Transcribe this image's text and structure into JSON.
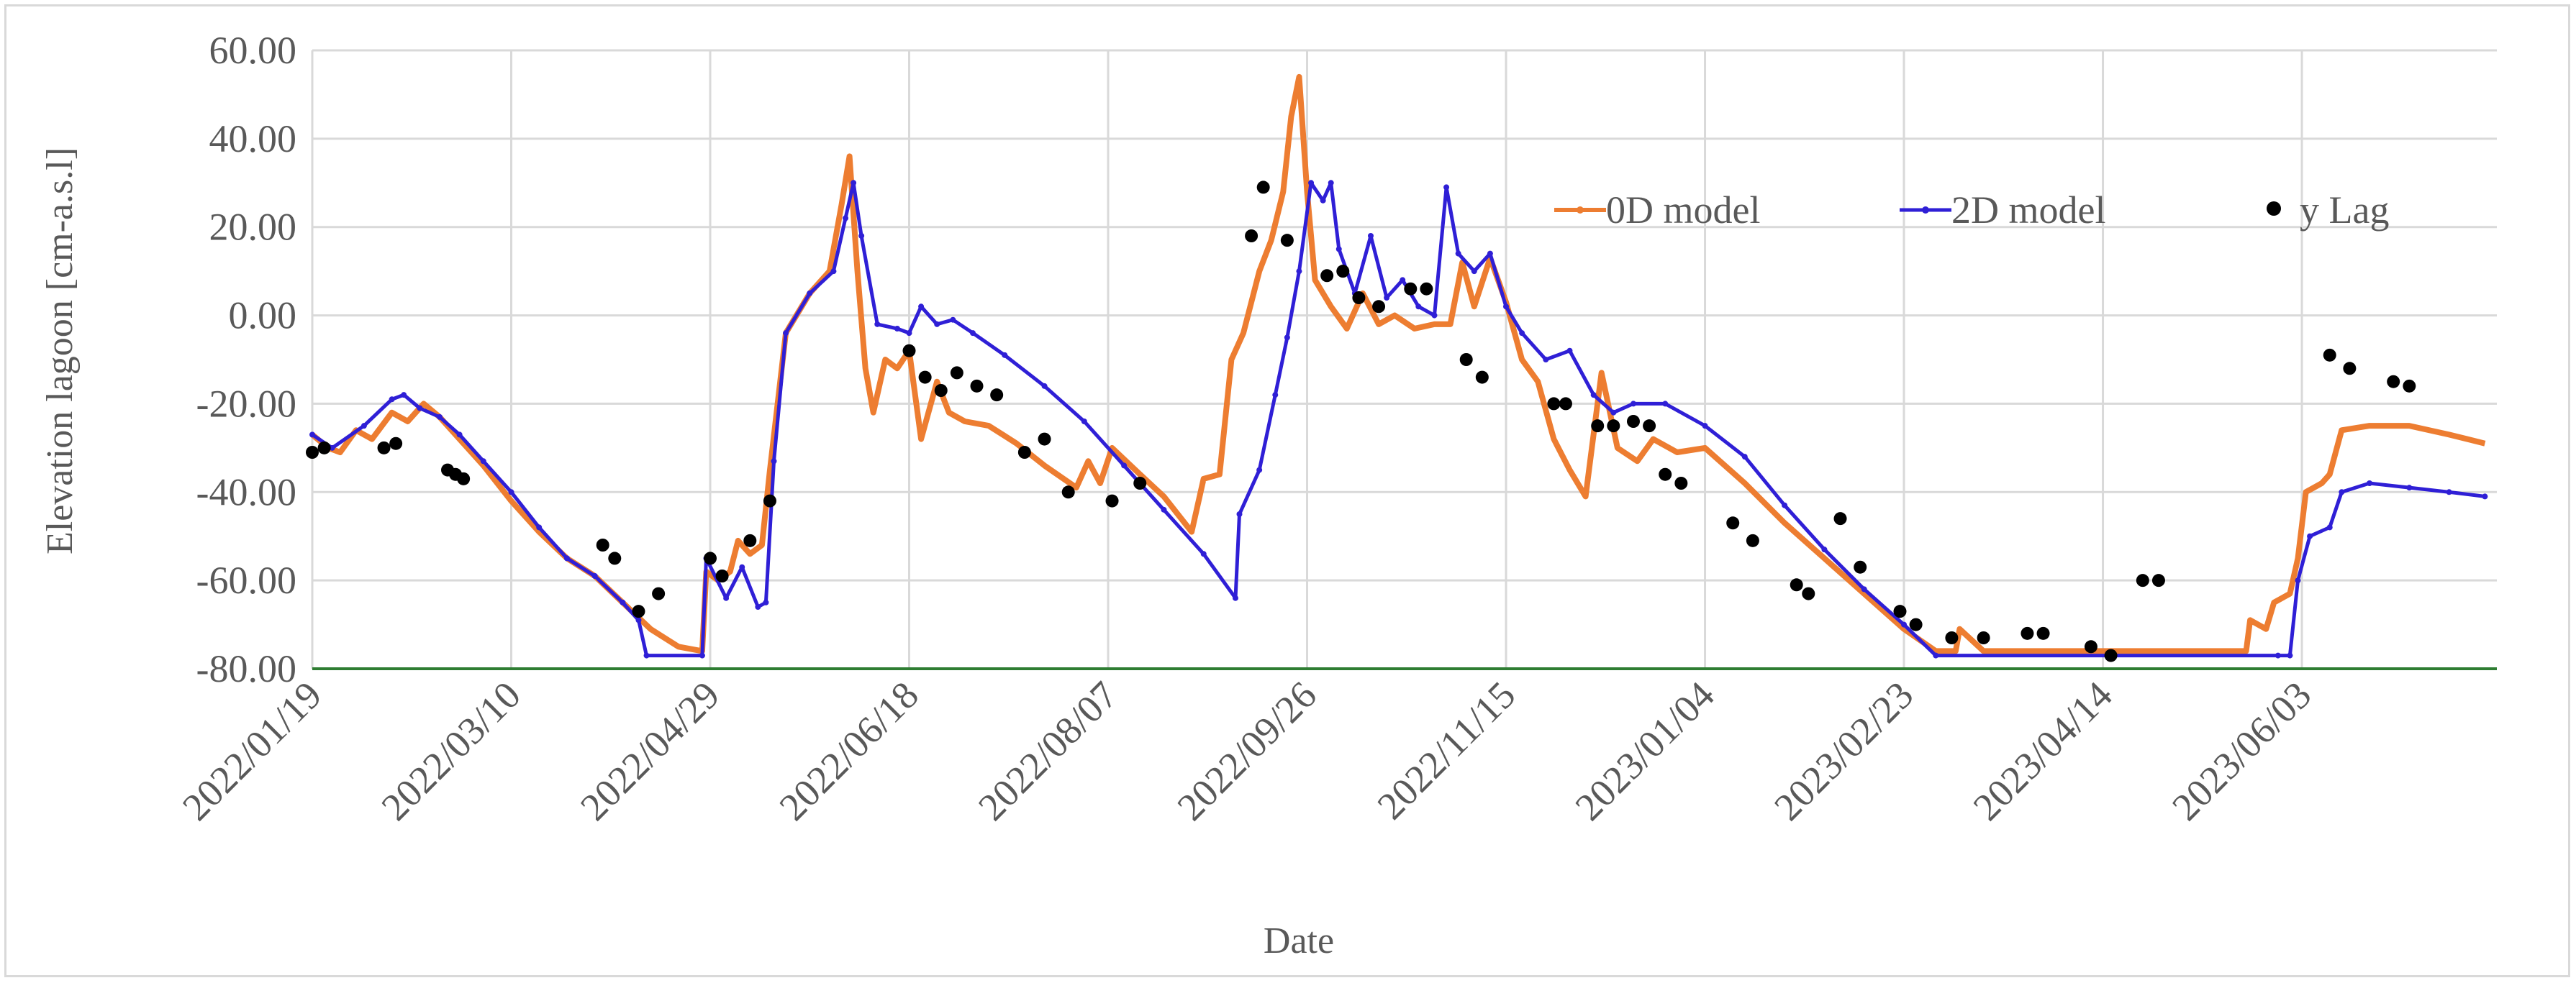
{
  "chart_data": {
    "type": "line",
    "title": "",
    "xlabel": "Date",
    "ylabel": "Elevation lagoon [cm-a.s.l]",
    "ylim": [
      -80,
      60
    ],
    "xlim": [
      "2022-01-19",
      "2023-07-22"
    ],
    "y_ticks": [
      "60.00",
      "40.00",
      "20.00",
      "0.00",
      "-20.00",
      "-40.00",
      "-60.00",
      "-80.00"
    ],
    "x_ticks": [
      "2022/01/19",
      "2022/03/10",
      "2022/04/29",
      "2022/06/18",
      "2022/08/07",
      "2022/09/26",
      "2022/11/15",
      "2023/01/04",
      "2023/02/23",
      "2023/04/14",
      "2023/06/03"
    ],
    "grid": true,
    "legend_position": "top-right",
    "colors": {
      "0D model": "#ed7d31",
      "2D model": "#2f1fd6",
      "y Lag": "#000000",
      "baseline": "#2e7d32",
      "grid": "#d9d9d9"
    },
    "series": [
      {
        "name": "0D model",
        "kind": "line",
        "points": [
          [
            "2022-01-19",
            -27
          ],
          [
            "2022-01-23",
            -30
          ],
          [
            "2022-01-26",
            -31
          ],
          [
            "2022-01-30",
            -26
          ],
          [
            "2022-02-03",
            -28
          ],
          [
            "2022-02-08",
            -22
          ],
          [
            "2022-02-12",
            -24
          ],
          [
            "2022-02-16",
            -20
          ],
          [
            "2022-02-20",
            -23
          ],
          [
            "2022-02-25",
            -28
          ],
          [
            "2022-03-03",
            -34
          ],
          [
            "2022-03-10",
            -42
          ],
          [
            "2022-03-17",
            -49
          ],
          [
            "2022-03-24",
            -55
          ],
          [
            "2022-03-31",
            -59
          ],
          [
            "2022-04-07",
            -65
          ],
          [
            "2022-04-14",
            -71
          ],
          [
            "2022-04-21",
            -75
          ],
          [
            "2022-04-27",
            -76
          ],
          [
            "2022-04-28",
            -58
          ],
          [
            "2022-05-01",
            -60
          ],
          [
            "2022-05-04",
            -58
          ],
          [
            "2022-05-06",
            -51
          ],
          [
            "2022-05-09",
            -54
          ],
          [
            "2022-05-12",
            -52
          ],
          [
            "2022-05-14",
            -35
          ],
          [
            "2022-05-18",
            -4
          ],
          [
            "2022-05-24",
            5
          ],
          [
            "2022-05-29",
            10
          ],
          [
            "2022-06-01",
            25
          ],
          [
            "2022-06-03",
            36
          ],
          [
            "2022-06-05",
            10
          ],
          [
            "2022-06-07",
            -12
          ],
          [
            "2022-06-09",
            -22
          ],
          [
            "2022-06-12",
            -10
          ],
          [
            "2022-06-15",
            -12
          ],
          [
            "2022-06-18",
            -8
          ],
          [
            "2022-06-21",
            -28
          ],
          [
            "2022-06-25",
            -15
          ],
          [
            "2022-06-28",
            -22
          ],
          [
            "2022-07-02",
            -24
          ],
          [
            "2022-07-08",
            -25
          ],
          [
            "2022-07-15",
            -29
          ],
          [
            "2022-07-22",
            -34
          ],
          [
            "2022-07-30",
            -39
          ],
          [
            "2022-08-02",
            -33
          ],
          [
            "2022-08-05",
            -38
          ],
          [
            "2022-08-08",
            -30
          ],
          [
            "2022-08-15",
            -36
          ],
          [
            "2022-08-21",
            -41
          ],
          [
            "2022-08-28",
            -49
          ],
          [
            "2022-08-31",
            -37
          ],
          [
            "2022-09-04",
            -36
          ],
          [
            "2022-09-07",
            -10
          ],
          [
            "2022-09-10",
            -4
          ],
          [
            "2022-09-14",
            10
          ],
          [
            "2022-09-17",
            17
          ],
          [
            "2022-09-20",
            28
          ],
          [
            "2022-09-22",
            45
          ],
          [
            "2022-09-24",
            54
          ],
          [
            "2022-09-26",
            28
          ],
          [
            "2022-09-28",
            8
          ],
          [
            "2022-10-02",
            2
          ],
          [
            "2022-10-06",
            -3
          ],
          [
            "2022-10-10",
            5
          ],
          [
            "2022-10-14",
            -2
          ],
          [
            "2022-10-18",
            0
          ],
          [
            "2022-10-23",
            -3
          ],
          [
            "2022-10-28",
            -2
          ],
          [
            "2022-11-01",
            -2
          ],
          [
            "2022-11-04",
            12
          ],
          [
            "2022-11-07",
            2
          ],
          [
            "2022-11-11",
            13
          ],
          [
            "2022-11-15",
            3
          ],
          [
            "2022-11-19",
            -10
          ],
          [
            "2022-11-23",
            -15
          ],
          [
            "2022-11-27",
            -28
          ],
          [
            "2022-12-01",
            -35
          ],
          [
            "2022-12-05",
            -41
          ],
          [
            "2022-12-09",
            -13
          ],
          [
            "2022-12-13",
            -30
          ],
          [
            "2022-12-18",
            -33
          ],
          [
            "2022-12-22",
            -28
          ],
          [
            "2022-12-28",
            -31
          ],
          [
            "2023-01-04",
            -30
          ],
          [
            "2023-01-14",
            -38
          ],
          [
            "2023-01-24",
            -47
          ],
          [
            "2023-02-03",
            -55
          ],
          [
            "2023-02-13",
            -63
          ],
          [
            "2023-02-23",
            -71
          ],
          [
            "2023-03-03",
            -76
          ],
          [
            "2023-03-08",
            -76
          ],
          [
            "2023-03-09",
            -71
          ],
          [
            "2023-03-15",
            -76
          ],
          [
            "2023-05-20",
            -76
          ],
          [
            "2023-05-21",
            -69
          ],
          [
            "2023-05-25",
            -71
          ],
          [
            "2023-05-27",
            -65
          ],
          [
            "2023-05-31",
            -63
          ],
          [
            "2023-06-02",
            -55
          ],
          [
            "2023-06-04",
            -40
          ],
          [
            "2023-06-08",
            -38
          ],
          [
            "2023-06-10",
            -36
          ],
          [
            "2023-06-13",
            -26
          ],
          [
            "2023-06-20",
            -25
          ],
          [
            "2023-06-30",
            -25
          ],
          [
            "2023-07-10",
            -27
          ],
          [
            "2023-07-19",
            -29
          ]
        ]
      },
      {
        "name": "2D model",
        "kind": "line",
        "points": [
          [
            "2022-01-19",
            -27
          ],
          [
            "2022-01-24",
            -30
          ],
          [
            "2022-02-01",
            -25
          ],
          [
            "2022-02-08",
            -19
          ],
          [
            "2022-02-11",
            -18
          ],
          [
            "2022-02-15",
            -21
          ],
          [
            "2022-02-20",
            -23
          ],
          [
            "2022-02-25",
            -27
          ],
          [
            "2022-03-03",
            -33
          ],
          [
            "2022-03-10",
            -40
          ],
          [
            "2022-03-17",
            -48
          ],
          [
            "2022-03-24",
            -55
          ],
          [
            "2022-03-31",
            -59
          ],
          [
            "2022-04-07",
            -65
          ],
          [
            "2022-04-11",
            -69
          ],
          [
            "2022-04-13",
            -77
          ],
          [
            "2022-04-27",
            -77
          ],
          [
            "2022-04-28",
            -55
          ],
          [
            "2022-05-03",
            -64
          ],
          [
            "2022-05-07",
            -57
          ],
          [
            "2022-05-11",
            -66
          ],
          [
            "2022-05-13",
            -65
          ],
          [
            "2022-05-15",
            -33
          ],
          [
            "2022-05-18",
            -4
          ],
          [
            "2022-05-24",
            5
          ],
          [
            "2022-05-30",
            10
          ],
          [
            "2022-06-02",
            22
          ],
          [
            "2022-06-04",
            30
          ],
          [
            "2022-06-06",
            18
          ],
          [
            "2022-06-10",
            -2
          ],
          [
            "2022-06-15",
            -3
          ],
          [
            "2022-06-18",
            -4
          ],
          [
            "2022-06-21",
            2
          ],
          [
            "2022-06-25",
            -2
          ],
          [
            "2022-06-29",
            -1
          ],
          [
            "2022-07-04",
            -4
          ],
          [
            "2022-07-12",
            -9
          ],
          [
            "2022-07-22",
            -16
          ],
          [
            "2022-08-01",
            -24
          ],
          [
            "2022-08-11",
            -34
          ],
          [
            "2022-08-21",
            -44
          ],
          [
            "2022-08-31",
            -54
          ],
          [
            "2022-09-08",
            -64
          ],
          [
            "2022-09-09",
            -45
          ],
          [
            "2022-09-14",
            -35
          ],
          [
            "2022-09-18",
            -18
          ],
          [
            "2022-09-21",
            -5
          ],
          [
            "2022-09-24",
            10
          ],
          [
            "2022-09-27",
            30
          ],
          [
            "2022-09-30",
            26
          ],
          [
            "2022-10-02",
            30
          ],
          [
            "2022-10-04",
            15
          ],
          [
            "2022-10-08",
            5
          ],
          [
            "2022-10-12",
            18
          ],
          [
            "2022-10-16",
            4
          ],
          [
            "2022-10-20",
            8
          ],
          [
            "2022-10-24",
            2
          ],
          [
            "2022-10-28",
            0
          ],
          [
            "2022-10-31",
            29
          ],
          [
            "2022-11-03",
            14
          ],
          [
            "2022-11-07",
            10
          ],
          [
            "2022-11-11",
            14
          ],
          [
            "2022-11-15",
            2
          ],
          [
            "2022-11-19",
            -4
          ],
          [
            "2022-11-25",
            -10
          ],
          [
            "2022-12-01",
            -8
          ],
          [
            "2022-12-07",
            -18
          ],
          [
            "2022-12-12",
            -22
          ],
          [
            "2022-12-17",
            -20
          ],
          [
            "2022-12-25",
            -20
          ],
          [
            "2023-01-04",
            -25
          ],
          [
            "2023-01-14",
            -32
          ],
          [
            "2023-01-24",
            -43
          ],
          [
            "2023-02-03",
            -53
          ],
          [
            "2023-02-13",
            -62
          ],
          [
            "2023-02-23",
            -70
          ],
          [
            "2023-03-03",
            -77
          ],
          [
            "2023-05-28",
            -77
          ],
          [
            "2023-05-31",
            -77
          ],
          [
            "2023-06-02",
            -60
          ],
          [
            "2023-06-05",
            -50
          ],
          [
            "2023-06-10",
            -48
          ],
          [
            "2023-06-13",
            -40
          ],
          [
            "2023-06-20",
            -38
          ],
          [
            "2023-06-30",
            -39
          ],
          [
            "2023-07-10",
            -40
          ],
          [
            "2023-07-19",
            -41
          ]
        ]
      },
      {
        "name": "y Lag",
        "kind": "scatter",
        "points": [
          [
            "2022-01-19",
            -31
          ],
          [
            "2022-01-22",
            -30
          ],
          [
            "2022-02-06",
            -30
          ],
          [
            "2022-02-09",
            -29
          ],
          [
            "2022-02-22",
            -35
          ],
          [
            "2022-02-24",
            -36
          ],
          [
            "2022-02-26",
            -37
          ],
          [
            "2022-04-02",
            -52
          ],
          [
            "2022-04-05",
            -55
          ],
          [
            "2022-04-11",
            -67
          ],
          [
            "2022-04-16",
            -63
          ],
          [
            "2022-04-29",
            -55
          ],
          [
            "2022-05-02",
            -59
          ],
          [
            "2022-05-09",
            -51
          ],
          [
            "2022-05-14",
            -42
          ],
          [
            "2022-06-18",
            -8
          ],
          [
            "2022-06-22",
            -14
          ],
          [
            "2022-06-26",
            -17
          ],
          [
            "2022-06-30",
            -13
          ],
          [
            "2022-07-05",
            -16
          ],
          [
            "2022-07-10",
            -18
          ],
          [
            "2022-07-17",
            -31
          ],
          [
            "2022-07-22",
            -28
          ],
          [
            "2022-07-28",
            -40
          ],
          [
            "2022-08-08",
            -42
          ],
          [
            "2022-08-15",
            -38
          ],
          [
            "2022-09-12",
            18
          ],
          [
            "2022-09-15",
            29
          ],
          [
            "2022-09-21",
            17
          ],
          [
            "2022-10-01",
            9
          ],
          [
            "2022-10-05",
            10
          ],
          [
            "2022-10-09",
            4
          ],
          [
            "2022-10-14",
            2
          ],
          [
            "2022-10-22",
            6
          ],
          [
            "2022-10-26",
            6
          ],
          [
            "2022-11-05",
            -10
          ],
          [
            "2022-11-09",
            -14
          ],
          [
            "2022-11-27",
            -20
          ],
          [
            "2022-11-30",
            -20
          ],
          [
            "2022-12-08",
            -25
          ],
          [
            "2022-12-12",
            -25
          ],
          [
            "2022-12-17",
            -24
          ],
          [
            "2022-12-21",
            -25
          ],
          [
            "2022-12-25",
            -36
          ],
          [
            "2022-12-29",
            -38
          ],
          [
            "2023-01-11",
            -47
          ],
          [
            "2023-01-16",
            -51
          ],
          [
            "2023-01-27",
            -61
          ],
          [
            "2023-01-30",
            -63
          ],
          [
            "2023-02-07",
            -46
          ],
          [
            "2023-02-12",
            -57
          ],
          [
            "2023-02-22",
            -67
          ],
          [
            "2023-02-26",
            -70
          ],
          [
            "2023-03-07",
            -73
          ],
          [
            "2023-03-15",
            -73
          ],
          [
            "2023-03-26",
            -72
          ],
          [
            "2023-03-30",
            -72
          ],
          [
            "2023-04-11",
            -75
          ],
          [
            "2023-04-16",
            -77
          ],
          [
            "2023-04-24",
            -60
          ],
          [
            "2023-04-28",
            -60
          ],
          [
            "2023-06-10",
            -9
          ],
          [
            "2023-06-15",
            -12
          ],
          [
            "2023-06-26",
            -15
          ],
          [
            "2023-06-30",
            -16
          ]
        ]
      }
    ]
  }
}
